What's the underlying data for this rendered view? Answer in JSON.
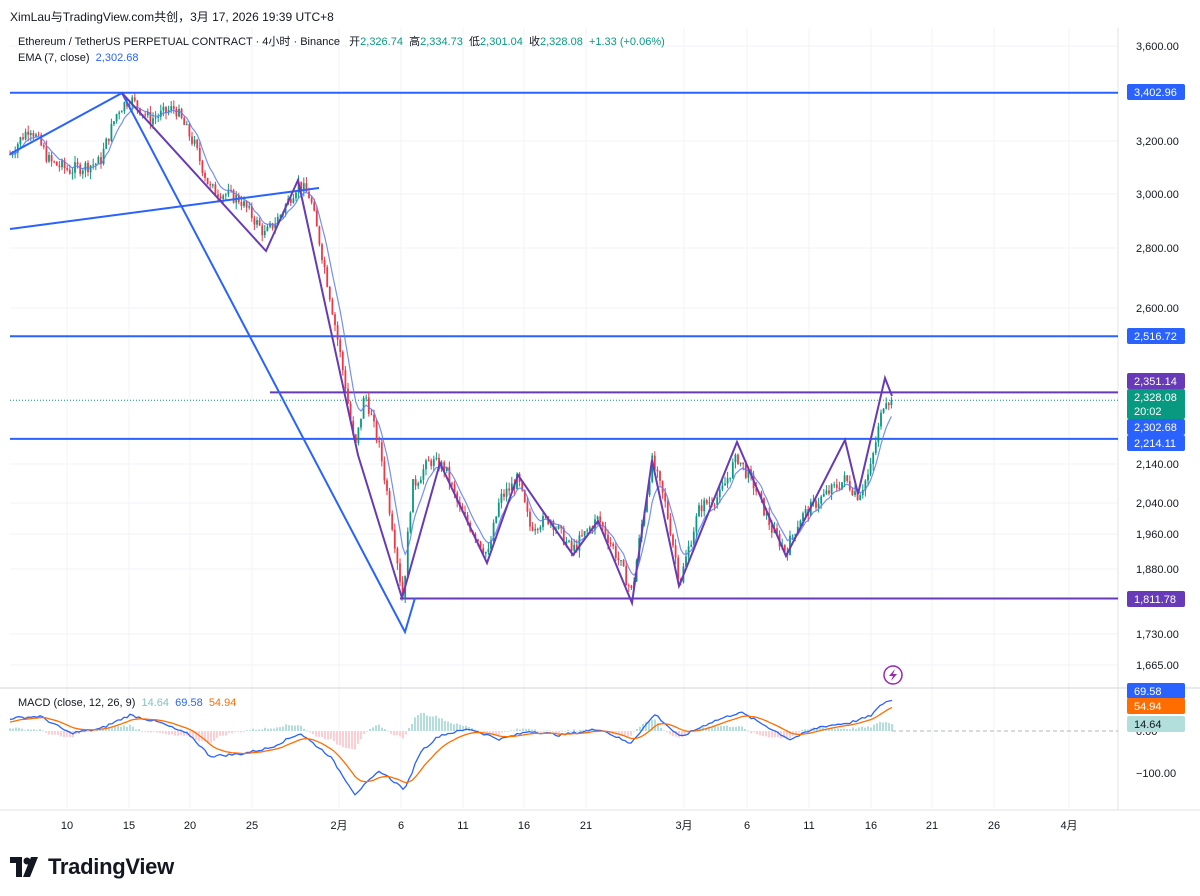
{
  "header": {
    "author_line": "XimLau与TradingView.com共创，3月 17, 2026 19:39 UTC+8"
  },
  "legend": {
    "symbol": "Ethereum / TetherUS PERPETUAL CONTRACT · 4小时 · Binance",
    "open_label": "开",
    "open": "2,326.74",
    "high_label": "高",
    "high": "2,334.73",
    "low_label": "低",
    "low": "2,301.04",
    "close_label": "收",
    "close": "2,328.08",
    "change": "+1.33 (+0.06%)",
    "ema_label": "EMA (7, close)",
    "ema_value": "2,302.68"
  },
  "macd_legend": {
    "label": "MACD (close, 12, 26, 9)",
    "histogram": "14.64",
    "macd": "69.58",
    "signal": "54.94"
  },
  "colors": {
    "up": "#089981",
    "down": "#f23645",
    "blue_line": "#2962ff",
    "purple_line": "#673ab7",
    "ema": "#2962ff",
    "macd_line": "#2962ff",
    "signal_line": "#ff6d00"
  },
  "price_axis": {
    "ticks": [
      "3,600.00",
      "3,200.00",
      "3,000.00",
      "2,800.00",
      "2,600.00",
      "2,140.00",
      "2,040.00",
      "1,960.00",
      "1,880.00",
      "1,730.00",
      "1,665.00"
    ],
    "tick_values": [
      3600,
      3200,
      3000,
      2800,
      2600,
      2140,
      2040,
      1960,
      1880,
      1730,
      1665
    ]
  },
  "price_labels": [
    {
      "text": "3,402.96",
      "value": 3402.96,
      "color": "#2962ff"
    },
    {
      "text": "2,516.72",
      "value": 2516.72,
      "color": "#2962ff"
    },
    {
      "text": "2,351.14",
      "value": 2351.14,
      "color": "#673ab7"
    },
    {
      "text": "2,328.08",
      "value": 2328.08,
      "color": "#089981"
    },
    {
      "text": "20:02",
      "value": 2328.08,
      "color": "#089981",
      "is_timer": true
    },
    {
      "text": "2,302.68",
      "value": 2302.68,
      "color": "#2962ff"
    },
    {
      "text": "2,214.11",
      "value": 2214.11,
      "color": "#2962ff"
    },
    {
      "text": "1,811.78",
      "value": 1811.78,
      "color": "#673ab7"
    }
  ],
  "macd_axis": {
    "ticks": [
      "0.00",
      "−100.00"
    ],
    "tick_values": [
      0,
      -100
    ]
  },
  "macd_labels": [
    {
      "text": "69.58",
      "value": 69.58,
      "color": "#2962ff"
    },
    {
      "text": "54.94",
      "value": 54.94,
      "color": "#ff6d00"
    },
    {
      "text": "14.64",
      "value": 14.64,
      "color": "#b2dfdb"
    }
  ],
  "time_axis": {
    "labels": [
      "10",
      "15",
      "20",
      "25",
      "2月",
      "6",
      "11",
      "16",
      "21",
      "3月",
      "6",
      "11",
      "16",
      "21",
      "26",
      "4月"
    ]
  },
  "logo": {
    "text": "TradingView"
  }
}
